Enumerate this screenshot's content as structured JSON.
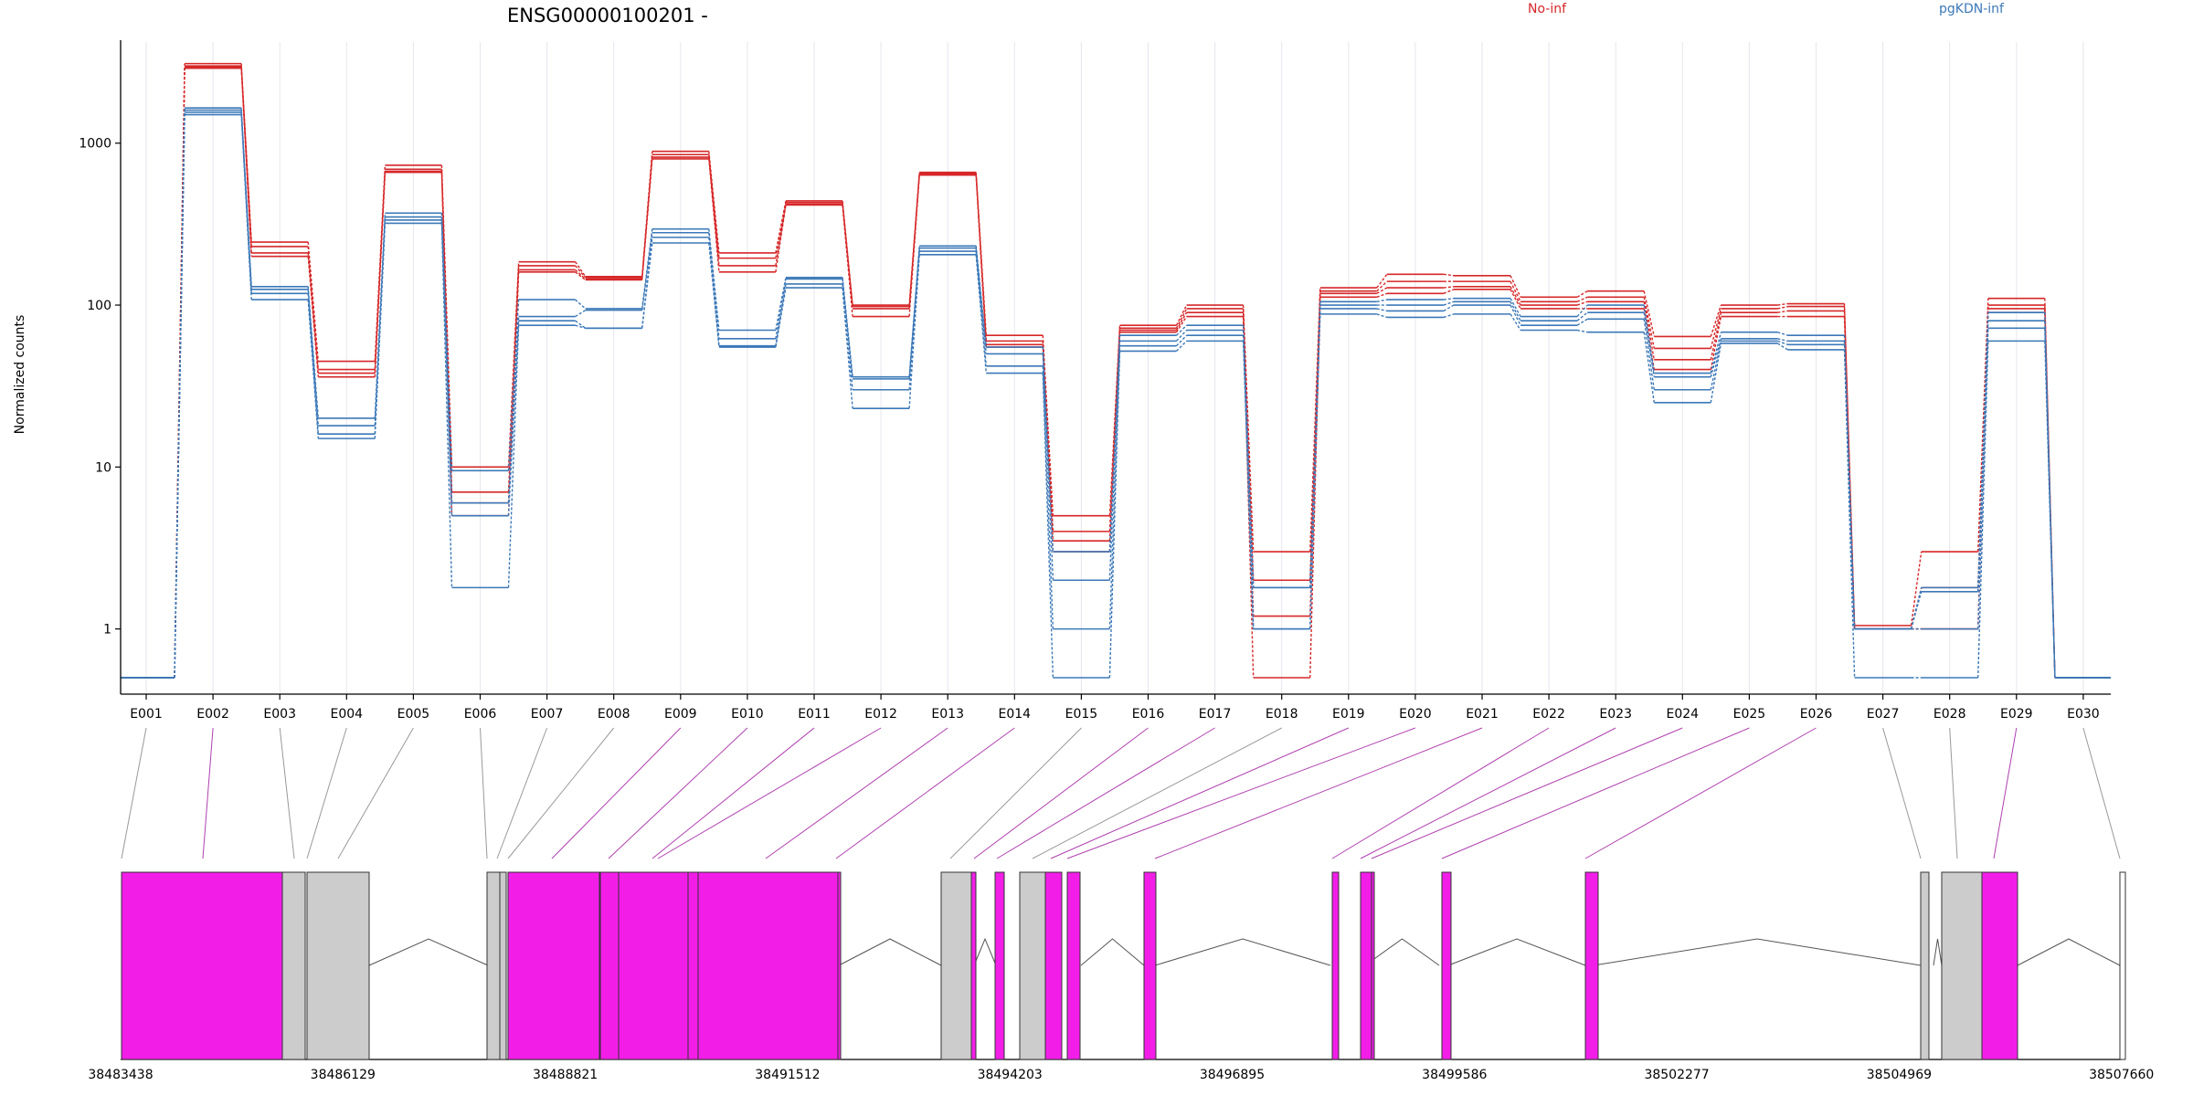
{
  "chart_data": {
    "type": "line",
    "title": "ENSG00000100201 -",
    "ylabel": "Normalized counts",
    "yscale": "log",
    "ylim": [
      0.5,
      4000
    ],
    "yticks": [
      1,
      10,
      100,
      1000
    ],
    "ytick_labels": [
      "1",
      "10",
      "100",
      "1000"
    ],
    "grid": "vertical",
    "legend_position": "top-right",
    "colors": {
      "no_inf": "#d62728",
      "pgkdn_inf": "#3b78b8",
      "exon_highlight": "#f21ee8",
      "exon_plain": "#cccccc",
      "connector_highlight": "#b040b0",
      "connector_plain": "#999999"
    },
    "categories": [
      "E001",
      "E002",
      "E003",
      "E004",
      "E005",
      "E006",
      "E007",
      "E008",
      "E009",
      "E010",
      "E011",
      "E012",
      "E013",
      "E014",
      "E015",
      "E016",
      "E017",
      "E018",
      "E019",
      "E020",
      "E021",
      "E022",
      "E023",
      "E024",
      "E025",
      "E026",
      "E027",
      "E028",
      "E029",
      "E030"
    ],
    "series": [
      {
        "name": "No-inf",
        "group": "No-inf",
        "values": [
          0.5,
          3100,
          245,
          45,
          730,
          10,
          185,
          150,
          890,
          210,
          440,
          100,
          660,
          65,
          5,
          75,
          100,
          3,
          128,
          155,
          152,
          112,
          122,
          64,
          100,
          102,
          1.05,
          3,
          110,
          0.5
        ]
      },
      {
        "name": "",
        "group": "No-inf",
        "values": [
          0.5,
          3000,
          230,
          40,
          690,
          7,
          175,
          148,
          850,
          195,
          430,
          98,
          650,
          60,
          4,
          72,
          95,
          2,
          122,
          140,
          140,
          105,
          112,
          54,
          95,
          98,
          1.0,
          1.8,
          100,
          0.5
        ]
      },
      {
        "name": "",
        "group": "No-inf",
        "values": [
          0.5,
          2950,
          210,
          38,
          670,
          6,
          165,
          145,
          820,
          175,
          420,
          95,
          640,
          57,
          3.5,
          70,
          90,
          1.2,
          118,
          128,
          130,
          100,
          105,
          46,
          90,
          92,
          1.0,
          1.0,
          95,
          0.5
        ]
      },
      {
        "name": "",
        "group": "No-inf",
        "values": [
          0.5,
          2900,
          200,
          36,
          660,
          5,
          160,
          143,
          800,
          160,
          415,
          85,
          635,
          55,
          3,
          68,
          85,
          0.5,
          112,
          118,
          125,
          95,
          95,
          40,
          85,
          85,
          1.0,
          1.0,
          90,
          0.5
        ]
      },
      {
        "name": "pgKDN-inf",
        "group": "pgKDN-inf",
        "values": [
          0.5,
          1650,
          130,
          20,
          370,
          9.5,
          108,
          95,
          295,
          70,
          148,
          36,
          232,
          55,
          3,
          65,
          75,
          1.8,
          105,
          108,
          110,
          85,
          100,
          38,
          68,
          65,
          1.0,
          1.8,
          90,
          0.5
        ]
      },
      {
        "name": "",
        "group": "pgKDN-inf",
        "values": [
          0.5,
          1600,
          125,
          18,
          350,
          6,
          85,
          93,
          280,
          62,
          145,
          35,
          225,
          50,
          2,
          60,
          70,
          1.8,
          100,
          100,
          105,
          80,
          90,
          36,
          62,
          60,
          1.0,
          1.7,
          80,
          0.5
        ]
      },
      {
        "name": "",
        "group": "pgKDN-inf",
        "values": [
          0.5,
          1550,
          118,
          16,
          335,
          5,
          80,
          72,
          262,
          56,
          135,
          30,
          215,
          42,
          1.0,
          56,
          65,
          1.0,
          95,
          92,
          100,
          75,
          82,
          30,
          60,
          57,
          1.0,
          1.0,
          72,
          0.5
        ]
      },
      {
        "name": "",
        "group": "pgKDN-inf",
        "values": [
          0.5,
          1500,
          108,
          15,
          320,
          1.8,
          75,
          72,
          242,
          55,
          128,
          23,
          205,
          38,
          0.5,
          52,
          60,
          1.0,
          88,
          84,
          88,
          70,
          68,
          25,
          58,
          53,
          0.5,
          0.5,
          60,
          0.5
        ]
      }
    ],
    "genomic_axis": {
      "tick_labels": [
        "38483438",
        "38486129",
        "38488821",
        "38491512",
        "38494203",
        "38496895",
        "38499586",
        "38502277",
        "38504969",
        "38507660"
      ]
    }
  }
}
